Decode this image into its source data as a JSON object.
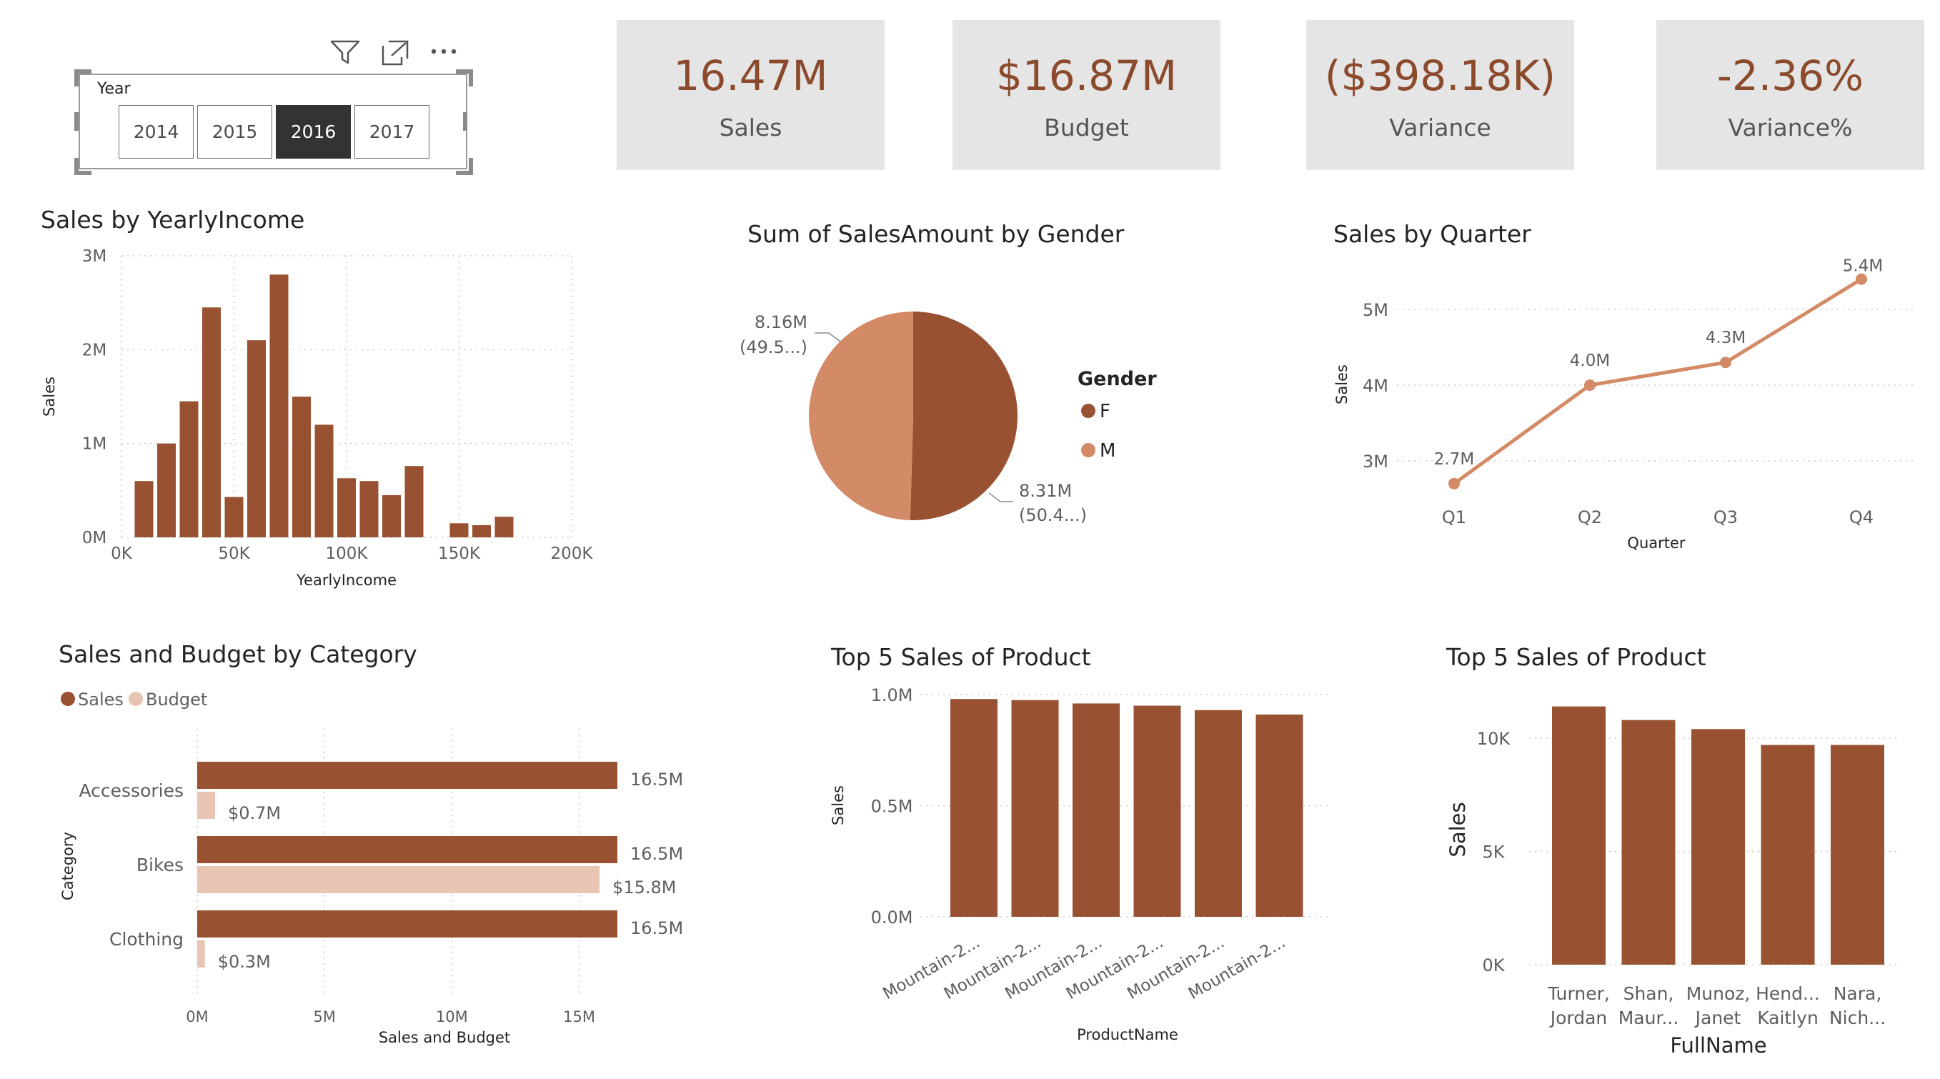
{
  "toolbar": {
    "filter_icon": "filter-icon",
    "focus_icon": "focus-mode-icon",
    "more_icon": "more-options-icon"
  },
  "slicer": {
    "title": "Year",
    "options": [
      "2014",
      "2015",
      "2016",
      "2017"
    ],
    "selected": "2016"
  },
  "kpis": [
    {
      "value": "16.47M",
      "label": "Sales"
    },
    {
      "value": "$16.87M",
      "label": "Budget"
    },
    {
      "value": "($398.18K)",
      "label": "Variance"
    },
    {
      "value": "-2.36%",
      "label": "Variance%"
    }
  ],
  "colors": {
    "primary": "#985232",
    "secondary": "#d38a66",
    "budget": "#e8c4b2",
    "kpi_text": "#8b4a2b",
    "kpi_bg": "#e5e5e5"
  },
  "chart_data": [
    {
      "id": "income",
      "type": "bar",
      "title": "Sales by YearlyIncome",
      "xlabel": "YearlyIncome",
      "ylabel": "Sales",
      "xlim": [
        0,
        200000
      ],
      "ylim": [
        0,
        3000000
      ],
      "x_ticks": [
        "0K",
        "50K",
        "100K",
        "150K",
        "200K"
      ],
      "y_ticks": [
        "0M",
        "1M",
        "2M",
        "3M"
      ],
      "x": [
        10000,
        20000,
        30000,
        40000,
        50000,
        60000,
        70000,
        80000,
        90000,
        100000,
        110000,
        120000,
        130000,
        150000,
        160000,
        170000
      ],
      "values": [
        600000,
        1000000,
        1450000,
        2450000,
        430000,
        2100000,
        2800000,
        1500000,
        1200000,
        630000,
        600000,
        450000,
        760000,
        150000,
        130000,
        220000
      ]
    },
    {
      "id": "gender",
      "type": "pie",
      "title": "Sum of SalesAmount by Gender",
      "legend_title": "Gender",
      "slices": [
        {
          "name": "F",
          "value": 8310000,
          "label": "8.31M",
          "pct_label": "(50.4...)"
        },
        {
          "name": "M",
          "value": 8160000,
          "label": "8.16M",
          "pct_label": "(49.5...)"
        }
      ]
    },
    {
      "id": "quarter",
      "type": "line",
      "title": "Sales by Quarter",
      "xlabel": "Quarter",
      "ylabel": "Sales",
      "categories": [
        "Q1",
        "Q2",
        "Q3",
        "Q4"
      ],
      "values": [
        2.7,
        4.0,
        4.3,
        5.4
      ],
      "data_labels": [
        "2.7M",
        "4.0M",
        "4.3M",
        "5.4M"
      ],
      "y_ticks": [
        "3M",
        "4M",
        "5M"
      ],
      "y_tick_values": [
        3,
        4,
        5
      ],
      "ylim": [
        2.5,
        5.6
      ]
    },
    {
      "id": "category",
      "type": "bar",
      "orientation": "horizontal",
      "title": "Sales and Budget by Category",
      "xlabel": "Sales and Budget",
      "ylabel": "Category",
      "categories": [
        "Accessories",
        "Bikes",
        "Clothing"
      ],
      "series": [
        {
          "name": "Sales",
          "values": [
            16.5,
            16.5,
            16.5
          ],
          "labels": [
            "16.5M",
            "16.5M",
            "16.5M"
          ]
        },
        {
          "name": "Budget",
          "values": [
            0.7,
            15.8,
            0.3
          ],
          "labels": [
            "$0.7M",
            "$15.8M",
            "$0.3M"
          ]
        }
      ],
      "x_ticks": [
        "0M",
        "5M",
        "10M",
        "15M"
      ],
      "x_tick_values": [
        0,
        5,
        10,
        15
      ],
      "xlim": [
        0,
        18
      ]
    },
    {
      "id": "top_product",
      "type": "bar",
      "title": "Top 5 Sales of Product",
      "xlabel": "ProductName",
      "ylabel": "Sales",
      "categories": [
        "Mountain-2...",
        "Mountain-2...",
        "Mountain-2...",
        "Mountain-2...",
        "Mountain-2...",
        "Mountain-2..."
      ],
      "values": [
        0.98,
        0.975,
        0.96,
        0.95,
        0.93,
        0.91
      ],
      "y_ticks": [
        "0.0M",
        "0.5M",
        "1.0M"
      ],
      "y_tick_values": [
        0,
        0.5,
        1.0
      ],
      "ylim": [
        0,
        1.0
      ]
    },
    {
      "id": "top_customer",
      "type": "bar",
      "title": "Top 5 Sales of Product",
      "xlabel": "FullName",
      "ylabel": "Sales",
      "categories": [
        [
          "Turner,",
          "Jordan"
        ],
        [
          "Shan,",
          "Maur..."
        ],
        [
          "Munoz,",
          "Janet"
        ],
        [
          "Hend...",
          "Kaitlyn"
        ],
        [
          "Nara,",
          "Nich..."
        ]
      ],
      "values": [
        11400,
        10800,
        10400,
        9700,
        9700
      ],
      "y_ticks": [
        "0K",
        "5K",
        "10K"
      ],
      "y_tick_values": [
        0,
        5000,
        10000
      ],
      "ylim": [
        0,
        12000
      ]
    }
  ]
}
